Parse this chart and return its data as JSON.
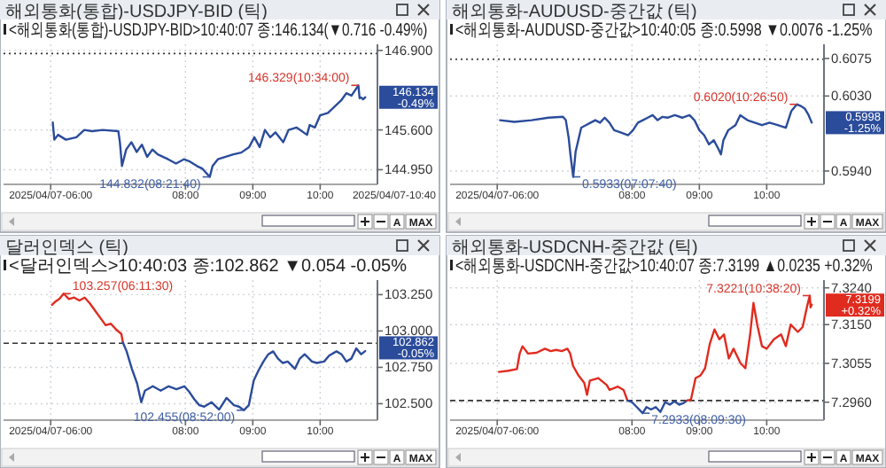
{
  "chart_data": [
    {
      "type": "line",
      "title": "해외통화(통합)-USDJPY-BID (틱)",
      "subtitle": "<해외통화(통합)-USDJPY-BID>10:40:07 종:146.134(▼0.716 -0.49%)",
      "series": [
        {
          "color": "#2b4c9b",
          "x": [
            6.031,
            6.054,
            6.109,
            6.226,
            6.381,
            6.498,
            6.615,
            6.77,
            7.004,
            7.027,
            7.058,
            7.121,
            7.198,
            7.276,
            7.354,
            7.432,
            7.51,
            7.588,
            7.665,
            7.743,
            7.86,
            7.977,
            8.054,
            8.171,
            8.248,
            8.361,
            8.403,
            8.481,
            8.597,
            8.713,
            8.829,
            8.946,
            9.023,
            9.102,
            9.18,
            9.258,
            9.336,
            9.453,
            9.531,
            9.648,
            9.805,
            9.844,
            9.922,
            10.0,
            10.116,
            10.233,
            10.31,
            10.388,
            10.465,
            10.567,
            10.585,
            10.61,
            10.636,
            10.669
          ],
          "values": [
            145.72,
            145.44,
            145.52,
            145.44,
            145.48,
            145.6,
            145.58,
            145.6,
            145.58,
            145.4,
            145.01,
            145.28,
            145.4,
            145.24,
            145.36,
            145.16,
            145.28,
            145.2,
            145.16,
            145.12,
            145.05,
            145.12,
            145.09,
            145.01,
            144.97,
            144.832,
            145.01,
            145.12,
            145.16,
            145.2,
            145.23,
            145.32,
            145.48,
            145.32,
            145.6,
            145.48,
            145.56,
            145.4,
            145.6,
            145.64,
            145.52,
            145.68,
            145.64,
            145.84,
            145.88,
            146.0,
            146.08,
            146.2,
            146.16,
            146.329,
            146.12,
            146.13,
            146.1,
            146.134
          ]
        }
      ],
      "xlim": [
        5.3,
        10.85
      ],
      "xticks": [
        {
          "value": 6,
          "label": "2025/04/07-06:00"
        },
        {
          "value": 8,
          "label": "08:00"
        },
        {
          "value": 9,
          "label": "09:00"
        },
        {
          "value": 10,
          "label": "10:00"
        }
      ],
      "ylim": [
        144.71,
        147.0
      ],
      "yticks": [
        {
          "value": 146.9,
          "label": "146.900"
        },
        {
          "value": 145.6,
          "label": "145.600"
        },
        {
          "value": 144.95,
          "label": "144.950"
        }
      ],
      "grid": true,
      "ref_lines": [
        {
          "axis": "y",
          "value": 146.85,
          "line_style": "dotted"
        }
      ],
      "annotations": [
        {
          "text": "146.134 -0.49%",
          "x": 10.669,
          "y": 146.134
        },
        {
          "text": "146.329(10:34:00)",
          "x": 10.567,
          "y": 146.329
        },
        {
          "text": "144.832(08:21:40)",
          "x": 8.361,
          "y": 144.832
        },
        "2025/04/07-10:40",
        "A",
        "MAX"
      ]
    },
    {
      "type": "line",
      "title": "해외통화-AUDUSD-중간값 (틱)",
      "subtitle": "<해외통화-AUDUSD-중간값>10:40:05 종:0.5998 ▼0.0076 -1.25%",
      "series": [
        {
          "color": "#2b4c9b",
          "x": [
            6.042,
            6.254,
            6.509,
            6.763,
            6.975,
            7.018,
            7.06,
            7.086,
            7.128,
            7.163,
            7.212,
            7.247,
            7.316,
            7.386,
            7.456,
            7.526,
            7.595,
            7.665,
            7.735,
            7.84,
            7.944,
            8.015,
            8.088,
            8.161,
            8.234,
            8.307,
            8.38,
            8.453,
            8.526,
            8.635,
            8.745,
            8.854,
            8.927,
            9.0,
            9.071,
            9.143,
            9.214,
            9.286,
            9.321,
            9.357,
            9.429,
            9.536,
            9.607,
            9.714,
            9.821,
            9.929,
            10.041,
            10.163,
            10.284,
            10.366,
            10.447,
            10.505,
            10.564,
            10.622,
            10.668
          ],
          "values": [
            0.6001,
            0.5999,
            0.6001,
            0.6004,
            0.6005,
            0.6001,
            0.598,
            0.596,
            0.5933,
            0.5963,
            0.598,
            0.5992,
            0.5995,
            0.5998,
            0.6001,
            0.5998,
            0.6004,
            0.5998,
            0.5989,
            0.5986,
            0.5983,
            0.5989,
            0.5998,
            0.6001,
            0.6004,
            0.6007,
            0.6001,
            0.6005,
            0.6004,
            0.6007,
            0.6004,
            0.6007,
            0.6001,
            0.5989,
            0.5983,
            0.5972,
            0.5977,
            0.5966,
            0.596,
            0.5977,
            0.5989,
            0.5995,
            0.6007,
            0.6001,
            0.5998,
            0.5995,
            0.5998,
            0.5995,
            0.5992,
            0.6012,
            0.602,
            0.6018,
            0.6015,
            0.6007,
            0.5998
          ]
        }
      ],
      "xlim": [
        5.3,
        10.85
      ],
      "xticks": [
        {
          "value": 6,
          "label": "2025/04/07-06:00"
        },
        {
          "value": 8,
          "label": "08:00"
        },
        {
          "value": 9,
          "label": "09:00"
        },
        {
          "value": 10,
          "label": "10:00"
        }
      ],
      "ylim": [
        0.5924,
        0.6092
      ],
      "yticks": [
        {
          "value": 0.6075,
          "label": "0.6075"
        },
        {
          "value": 0.603,
          "label": "0.6030"
        },
        {
          "value": 0.594,
          "label": "0.5940"
        }
      ],
      "grid": true,
      "ref_lines": [
        {
          "axis": "y",
          "value": 0.6074,
          "line_style": "dotted"
        }
      ],
      "annotations": [
        {
          "text": "0.5998 -1.25%",
          "x": 10.668,
          "y": 0.5998
        },
        {
          "text": "0.6020(10:26:50)",
          "x": 10.447,
          "y": 0.602
        },
        {
          "text": "0.5933(07:07:40)",
          "x": 7.128,
          "y": 0.5933
        },
        "A",
        "MAX"
      ]
    },
    {
      "type": "line",
      "title": "달러인덱스 (틱)",
      "subtitle": "<달러인덱스>10:40:03 종:102.862 ▼0.054 -0.05%",
      "series": [
        {
          "color": "#e02b1f",
          "x": [
            6.019,
            6.064,
            6.128,
            6.192,
            6.27,
            6.348,
            6.426,
            6.504,
            6.581,
            6.659,
            6.737,
            6.815,
            6.893,
            6.971,
            7.049,
            7.072
          ],
          "values": [
            103.18,
            103.2,
            103.22,
            103.257,
            103.22,
            103.23,
            103.21,
            103.23,
            103.19,
            103.14,
            103.09,
            103.04,
            103.05,
            103.01,
            102.98,
            102.92
          ]
        },
        {
          "color": "#2b4c9b",
          "x": [
            7.072,
            7.127,
            7.205,
            7.282,
            7.344,
            7.399,
            7.516,
            7.633,
            7.75,
            7.867,
            7.984,
            8.059,
            8.132,
            8.206,
            8.279,
            8.389,
            8.5,
            8.61,
            8.72,
            8.793,
            8.867,
            8.941,
            9.014,
            9.086,
            9.158,
            9.23,
            9.302,
            9.374,
            9.446,
            9.518,
            9.626,
            9.698,
            9.77,
            9.878,
            9.95,
            10.059,
            10.132,
            10.242,
            10.316,
            10.389,
            10.462,
            10.536,
            10.609,
            10.668
          ],
          "values": [
            102.92,
            102.86,
            102.74,
            102.64,
            102.51,
            102.59,
            102.62,
            102.59,
            102.62,
            102.6,
            102.62,
            102.58,
            102.53,
            102.49,
            102.48,
            102.51,
            102.46,
            102.54,
            102.49,
            102.48,
            102.455,
            102.49,
            102.66,
            102.73,
            102.79,
            102.84,
            102.86,
            102.81,
            102.78,
            102.79,
            102.74,
            102.81,
            102.84,
            102.79,
            102.78,
            102.79,
            102.83,
            102.86,
            102.84,
            102.79,
            102.81,
            102.88,
            102.84,
            102.862
          ]
        }
      ],
      "xlim": [
        5.3,
        10.85
      ],
      "xticks": [
        {
          "value": 6,
          "label": "2025/04/07-06:00"
        },
        {
          "value": 8,
          "label": "08:00"
        },
        {
          "value": 9,
          "label": "09:00"
        },
        {
          "value": 10,
          "label": "10:00"
        }
      ],
      "ylim": [
        102.387,
        103.35
      ],
      "yticks": [
        {
          "value": 103.25,
          "label": "103.250"
        },
        {
          "value": 103,
          "label": "103.000"
        },
        {
          "value": 102.75,
          "label": "102.750"
        },
        {
          "value": 102.5,
          "label": "102.500"
        }
      ],
      "grid": true,
      "ref_lines": [
        {
          "axis": "y",
          "value": 102.916,
          "line_style": "dashed"
        }
      ],
      "annotations": [
        {
          "text": "102.862 -0.05%",
          "x": 10.668,
          "y": 102.862
        },
        {
          "text": "103.257(06:11:30)",
          "x": 6.192,
          "y": 103.257
        },
        {
          "text": "102.455(08:52:00)",
          "x": 8.867,
          "y": 102.455
        },
        "A",
        "MAX"
      ]
    },
    {
      "type": "line",
      "title": "해외통화-USDCNH-중간값 (틱)",
      "subtitle": "<해외통화-USDCNH-중간값>10:40:07 종:7.3199 ▲0.0235 +0.32%",
      "series": [
        {
          "color": "#e02b1f",
          "x": [
            6.025,
            6.167,
            6.292,
            6.333,
            6.375,
            6.458,
            6.583,
            6.708,
            6.792,
            6.875,
            6.958,
            7.042,
            7.083,
            7.125,
            7.208,
            7.292,
            7.333,
            7.375,
            7.5,
            7.625,
            7.667,
            7.792,
            7.875,
            7.933
          ],
          "values": [
            7.3034,
            7.3037,
            7.3041,
            7.3079,
            7.3097,
            7.3079,
            7.3081,
            7.3091,
            7.3085,
            7.3088,
            7.3085,
            7.3091,
            7.3079,
            7.3049,
            7.3025,
            7.3007,
            7.2978,
            7.3013,
            7.3019,
            7.3002,
            7.299,
            7.2998,
            7.299,
            7.2964
          ]
        },
        {
          "color": "#2b4c9b",
          "x": [
            7.933,
            8.0,
            8.072,
            8.158,
            8.214,
            8.283,
            8.353,
            8.422,
            8.492,
            8.562,
            8.631,
            8.701,
            8.77,
            8.819
          ],
          "values": [
            7.2964,
            7.296,
            7.2948,
            7.2933,
            7.2948,
            7.2942,
            7.2948,
            7.2936,
            7.296,
            7.2954,
            7.2962,
            7.2954,
            7.2958,
            7.2964
          ]
        },
        {
          "color": "#e02b1f",
          "x": [
            8.819,
            8.875,
            8.944,
            9.014,
            9.085,
            9.155,
            9.225,
            9.296,
            9.366,
            9.437,
            9.507,
            9.613,
            9.683,
            9.754,
            9.803,
            9.859,
            9.93,
            10.0,
            10.107,
            10.213,
            10.284,
            10.355,
            10.462,
            10.533,
            10.604,
            10.639,
            10.651,
            10.669
          ],
          "values": [
            7.2964,
            7.2966,
            7.3019,
            7.3025,
            7.3043,
            7.3103,
            7.3138,
            7.3114,
            7.3126,
            7.3067,
            7.3091,
            7.3055,
            7.3043,
            7.3126,
            7.3203,
            7.315,
            7.3097,
            7.3091,
            7.3114,
            7.3126,
            7.3097,
            7.315,
            7.3132,
            7.3144,
            7.3198,
            7.3221,
            7.3192,
            7.3199
          ]
        }
      ],
      "xlim": [
        5.3,
        10.85
      ],
      "xticks": [
        {
          "value": 6,
          "label": "2025/04/07-06:00"
        },
        {
          "value": 8,
          "label": "08:00"
        },
        {
          "value": 9,
          "label": "09:00"
        },
        {
          "value": 10,
          "label": "10:00"
        }
      ],
      "ylim": [
        7.2916,
        7.3259
      ],
      "yticks": [
        {
          "value": 7.324,
          "label": "7.3240"
        },
        {
          "value": 7.315,
          "label": "7.3150"
        },
        {
          "value": 7.3055,
          "label": "7.3055"
        },
        {
          "value": 7.296,
          "label": "7.2960"
        }
      ],
      "grid": true,
      "ref_lines": [
        {
          "axis": "y",
          "value": 7.2964,
          "line_style": "dashed"
        }
      ],
      "annotations": [
        {
          "text": "7.3199 +0.32%",
          "x": 10.669,
          "y": 7.3199
        },
        {
          "text": "7.3221(10:38:20)",
          "x": 10.639,
          "y": 7.3221
        },
        {
          "text": "7.2933(08:09:30)",
          "x": 8.158,
          "y": 7.2933
        },
        "A",
        "MAX"
      ]
    }
  ]
}
